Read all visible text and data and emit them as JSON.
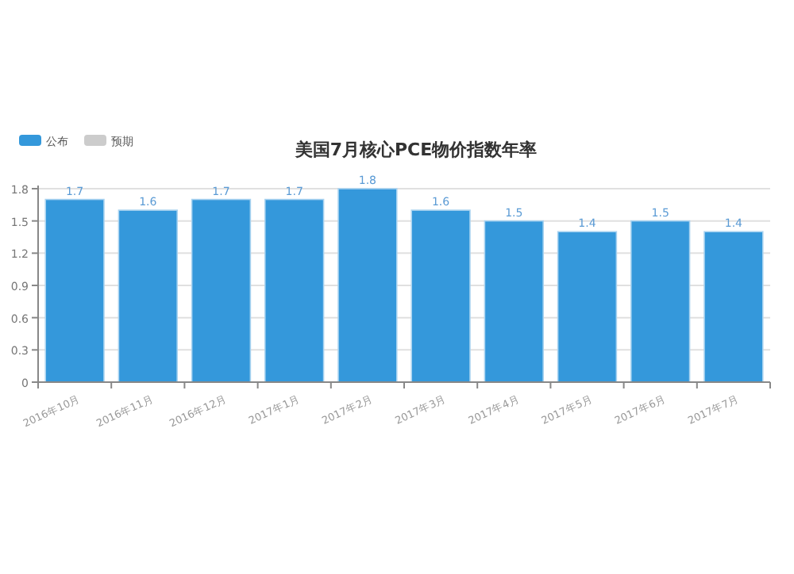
{
  "chart_data": {
    "type": "bar",
    "title": "美国7月核心PCE物价指数年率",
    "categories": [
      "2016年10月",
      "2016年11月",
      "2016年12月",
      "2017年1月",
      "2017年2月",
      "2017年3月",
      "2017年4月",
      "2017年5月",
      "2017年6月",
      "2017年7月"
    ],
    "series": [
      {
        "name": "公布",
        "color": "#3498db",
        "values": [
          1.7,
          1.6,
          1.7,
          1.7,
          1.8,
          1.6,
          1.5,
          1.4,
          1.5,
          1.4
        ]
      },
      {
        "name": "预期",
        "color": "#cccccc",
        "values": [
          null,
          null,
          null,
          null,
          null,
          null,
          null,
          null,
          null,
          null
        ]
      }
    ],
    "ylim": [
      0,
      1.8
    ],
    "yticks": [
      0,
      0.3,
      0.6,
      0.9,
      1.2,
      1.5,
      1.8
    ],
    "grid": "y",
    "legend": "top left",
    "data_labels": true
  }
}
